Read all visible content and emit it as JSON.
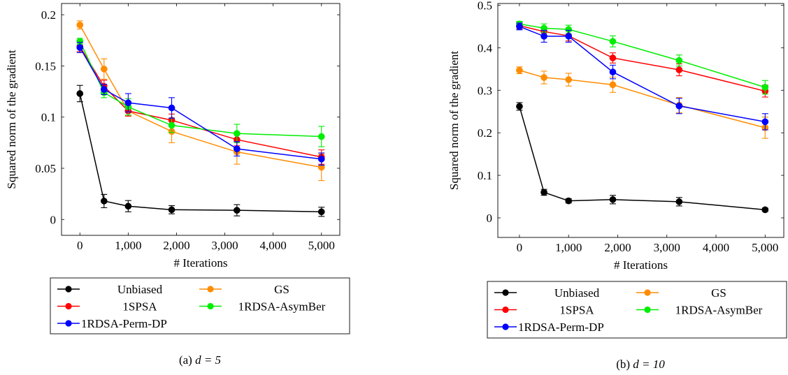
{
  "chart_data": [
    {
      "type": "line",
      "caption": "(a) d = 5",
      "caption_prefix": "(a) ",
      "caption_math": "d = 5",
      "xlabel": "# Iterations",
      "ylabel": "Squared norm of the gradient",
      "xlim": [
        -380,
        5380
      ],
      "ylim": [
        -0.0155,
        0.211
      ],
      "xticks": [
        0,
        1000,
        2000,
        3000,
        4000,
        5000
      ],
      "xtick_labels": [
        "0",
        "1,000",
        "2,000",
        "3,000",
        "4,000",
        "5,000"
      ],
      "yticks": [
        0,
        0.05,
        0.1,
        0.15,
        0.2
      ],
      "ytick_labels": [
        "0",
        "0.05",
        "0.1",
        "0.15",
        "0.2"
      ],
      "legend_position": "below",
      "series": [
        {
          "name": "Unbiased",
          "color": "#000000",
          "x": [
            0,
            500,
            1000,
            1900,
            3250,
            5000
          ],
          "y": [
            0.123,
            0.018,
            0.013,
            0.0095,
            0.009,
            0.0075
          ],
          "err": [
            0.008,
            0.0065,
            0.0055,
            0.004,
            0.0055,
            0.0045
          ]
        },
        {
          "name": "GS",
          "color": "#ff8c00",
          "x": [
            0,
            500,
            1000,
            1900,
            3250,
            5000
          ],
          "y": [
            0.19,
            0.147,
            0.106,
            0.086,
            0.066,
            0.051
          ],
          "err": [
            0.004,
            0.01,
            0.005,
            0.011,
            0.012,
            0.013
          ]
        },
        {
          "name": "1SPSA",
          "color": "#ff0000",
          "x": [
            0,
            500,
            1000,
            1900,
            3250,
            5000
          ],
          "y": [
            0.169,
            0.13,
            0.106,
            0.097,
            0.078,
            0.061
          ],
          "err": [
            0.005,
            0.006,
            0.005,
            0.006,
            0.006,
            0.007
          ]
        },
        {
          "name": "1RDSA-AsymBer",
          "color": "#00ee00",
          "x": [
            0,
            500,
            1000,
            1900,
            3250,
            5000
          ],
          "y": [
            0.174,
            0.124,
            0.11,
            0.092,
            0.084,
            0.081
          ],
          "err": [
            0.003,
            0.005,
            0.008,
            0.007,
            0.009,
            0.01
          ]
        },
        {
          "name": "1RDSA-Perm-DP",
          "color": "#0000ff",
          "x": [
            0,
            500,
            1000,
            1900,
            3250,
            5000
          ],
          "y": [
            0.168,
            0.127,
            0.114,
            0.109,
            0.069,
            0.059
          ],
          "err": [
            0.005,
            0.005,
            0.009,
            0.01,
            0.007,
            0.006
          ]
        }
      ]
    },
    {
      "type": "line",
      "caption": "(b) d = 10",
      "caption_prefix": "(b) ",
      "caption_math": "d = 10",
      "xlabel": "# Iterations",
      "ylabel": "Squared norm of the gradient",
      "xlim": [
        -440,
        5380
      ],
      "ylim": [
        -0.046,
        0.504
      ],
      "xticks": [
        0,
        1000,
        2000,
        3000,
        4000,
        5000
      ],
      "xtick_labels": [
        "0",
        "1,000",
        "2,000",
        "3,000",
        "4,000",
        "5,000"
      ],
      "yticks": [
        0,
        0.1,
        0.2,
        0.3,
        0.4,
        0.5
      ],
      "ytick_labels": [
        "0",
        "0.1",
        "0.2",
        "0.3",
        "0.4",
        "0.5"
      ],
      "legend_position": "below",
      "series": [
        {
          "name": "Unbiased",
          "color": "#000000",
          "x": [
            0,
            500,
            1000,
            1900,
            3250,
            5000
          ],
          "y": [
            0.262,
            0.06,
            0.04,
            0.043,
            0.038,
            0.019
          ],
          "err": [
            0.009,
            0.007,
            0.005,
            0.01,
            0.01,
            0.004
          ]
        },
        {
          "name": "GS",
          "color": "#ff8c00",
          "x": [
            0,
            500,
            1000,
            1900,
            3250,
            5000
          ],
          "y": [
            0.347,
            0.33,
            0.325,
            0.313,
            0.265,
            0.212
          ],
          "err": [
            0.008,
            0.015,
            0.015,
            0.018,
            0.018,
            0.025
          ]
        },
        {
          "name": "1SPSA",
          "color": "#ff0000",
          "x": [
            0,
            500,
            1000,
            1900,
            3250,
            5000
          ],
          "y": [
            0.452,
            0.438,
            0.428,
            0.376,
            0.348,
            0.298
          ],
          "err": [
            0.008,
            0.01,
            0.012,
            0.012,
            0.014,
            0.014
          ]
        },
        {
          "name": "1RDSA-AsymBer",
          "color": "#00ee00",
          "x": [
            0,
            500,
            1000,
            1900,
            3250,
            5000
          ],
          "y": [
            0.456,
            0.446,
            0.443,
            0.415,
            0.37,
            0.307
          ],
          "err": [
            0.006,
            0.01,
            0.01,
            0.013,
            0.013,
            0.016
          ]
        },
        {
          "name": "1RDSA-Perm-DP",
          "color": "#0000ff",
          "x": [
            0,
            500,
            1000,
            1900,
            3250,
            5000
          ],
          "y": [
            0.45,
            0.427,
            0.427,
            0.343,
            0.263,
            0.226
          ],
          "err": [
            0.008,
            0.014,
            0.014,
            0.016,
            0.018,
            0.019
          ]
        }
      ]
    }
  ]
}
